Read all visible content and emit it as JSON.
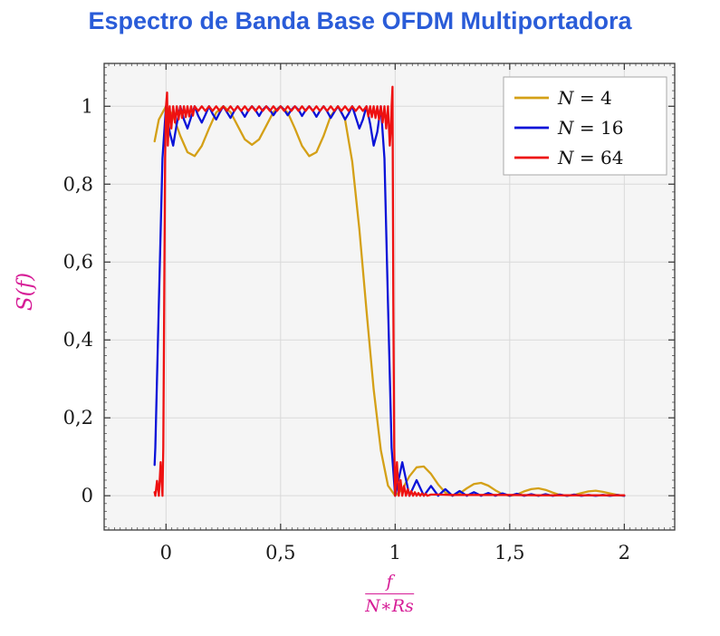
{
  "chart_data": {
    "type": "line",
    "title": "Espectro de Banda Base OFDM Multiportadora",
    "title_color": "#2a5cd8",
    "xlabel_numerator": "f",
    "xlabel_denominator": "N∗Rs",
    "ylabel": "S(f)",
    "label_color": "#d61c96",
    "plot_bg": "#f5f5f5",
    "grid_color": "#d9d9d9",
    "grid": true,
    "legend_position": "top-right",
    "xlim": [
      -0.27,
      2.22
    ],
    "ylim": [
      -0.088,
      1.11
    ],
    "x_minor_step": 0.025,
    "y_minor_step": 0.02,
    "x_ticks": [
      {
        "v": 0,
        "label": "0"
      },
      {
        "v": 0.5,
        "label": "0,5"
      },
      {
        "v": 1,
        "label": "1"
      },
      {
        "v": 1.5,
        "label": "1,5"
      },
      {
        "v": 2,
        "label": "2"
      }
    ],
    "y_ticks": [
      {
        "v": 0,
        "label": "0"
      },
      {
        "v": 0.2,
        "label": "0,2"
      },
      {
        "v": 0.4,
        "label": "0,4"
      },
      {
        "v": 0.6,
        "label": "0,6"
      },
      {
        "v": 0.8,
        "label": "0,8"
      },
      {
        "v": 1,
        "label": "1"
      }
    ],
    "series": [
      {
        "name": "N = 4",
        "color": "#d4a017",
        "points": [
          [
            -0.05,
            0.91
          ],
          [
            -0.03125,
            0.966
          ],
          [
            0,
            1
          ],
          [
            0.03125,
            0.975
          ],
          [
            0.0625,
            0.924
          ],
          [
            0.09375,
            0.882
          ],
          [
            0.125,
            0.872
          ],
          [
            0.15625,
            0.898
          ],
          [
            0.1875,
            0.943
          ],
          [
            0.21875,
            0.984
          ],
          [
            0.25,
            1
          ],
          [
            0.28125,
            0.985
          ],
          [
            0.3125,
            0.95
          ],
          [
            0.34375,
            0.915
          ],
          [
            0.375,
            0.901
          ],
          [
            0.40625,
            0.915
          ],
          [
            0.4375,
            0.95
          ],
          [
            0.46875,
            0.985
          ],
          [
            0.5,
            1
          ],
          [
            0.53125,
            0.984
          ],
          [
            0.5625,
            0.943
          ],
          [
            0.59375,
            0.898
          ],
          [
            0.625,
            0.872
          ],
          [
            0.65625,
            0.882
          ],
          [
            0.6875,
            0.924
          ],
          [
            0.71875,
            0.975
          ],
          [
            0.75,
            1
          ],
          [
            0.78125,
            0.966
          ],
          [
            0.8125,
            0.858
          ],
          [
            0.84375,
            0.684
          ],
          [
            0.875,
            0.475
          ],
          [
            0.90625,
            0.273
          ],
          [
            0.9375,
            0.117
          ],
          [
            0.96875,
            0.026
          ],
          [
            1,
            0
          ],
          [
            1.03125,
            0.017
          ],
          [
            1.0625,
            0.05
          ],
          [
            1.09375,
            0.073
          ],
          [
            1.125,
            0.075
          ],
          [
            1.15625,
            0.056
          ],
          [
            1.1875,
            0.029
          ],
          [
            1.21875,
            0.008
          ],
          [
            1.25,
            0
          ],
          [
            1.28125,
            0.006
          ],
          [
            1.3125,
            0.019
          ],
          [
            1.34375,
            0.03
          ],
          [
            1.375,
            0.033
          ],
          [
            1.40625,
            0.026
          ],
          [
            1.4375,
            0.014
          ],
          [
            1.46875,
            0.004
          ],
          [
            1.5,
            0
          ],
          [
            1.53125,
            0.003
          ],
          [
            1.5625,
            0.011
          ],
          [
            1.59375,
            0.017
          ],
          [
            1.625,
            0.019
          ],
          [
            1.65625,
            0.015
          ],
          [
            1.6875,
            0.008
          ],
          [
            1.71875,
            0.002
          ],
          [
            1.75,
            0
          ],
          [
            1.78125,
            0.002
          ],
          [
            1.8125,
            0.007
          ],
          [
            1.84375,
            0.011
          ],
          [
            1.875,
            0.013
          ],
          [
            1.90625,
            0.01
          ],
          [
            1.9375,
            0.006
          ],
          [
            1.96875,
            0.002
          ],
          [
            2,
            0
          ]
        ]
      },
      {
        "name": "N = 16",
        "color": "#0a12d8",
        "points": [
          [
            -0.05,
            0.079
          ],
          [
            -0.04688,
            0.123
          ],
          [
            -0.03125,
            0.494
          ],
          [
            -0.01563,
            0.866
          ],
          [
            0,
            1
          ],
          [
            0.01563,
            0.934
          ],
          [
            0.03125,
            0.899
          ],
          [
            0.04688,
            0.955
          ],
          [
            0.0625,
            1
          ],
          [
            0.07813,
            0.966
          ],
          [
            0.09375,
            0.943
          ],
          [
            0.10938,
            0.972
          ],
          [
            0.125,
            1
          ],
          [
            0.14063,
            0.975
          ],
          [
            0.15625,
            0.958
          ],
          [
            0.17188,
            0.978
          ],
          [
            0.1875,
            1
          ],
          [
            0.20313,
            0.981
          ],
          [
            0.21875,
            0.966
          ],
          [
            0.23438,
            0.984
          ],
          [
            0.25,
            1
          ],
          [
            0.26563,
            0.985
          ],
          [
            0.28125,
            0.97
          ],
          [
            0.29688,
            0.987
          ],
          [
            0.3125,
            1
          ],
          [
            0.32813,
            0.988
          ],
          [
            0.34375,
            0.973
          ],
          [
            0.35938,
            0.989
          ],
          [
            0.375,
            1
          ],
          [
            0.39063,
            0.99
          ],
          [
            0.40625,
            0.975
          ],
          [
            0.42188,
            0.991
          ],
          [
            0.4375,
            1
          ],
          [
            0.45313,
            0.991
          ],
          [
            0.46875,
            0.977
          ],
          [
            0.48438,
            0.991
          ],
          [
            0.5,
            1
          ],
          [
            0.51563,
            0.991
          ],
          [
            0.53125,
            0.977
          ],
          [
            0.54688,
            0.991
          ],
          [
            0.5625,
            1
          ],
          [
            0.57813,
            0.991
          ],
          [
            0.59375,
            0.975
          ],
          [
            0.60938,
            0.99
          ],
          [
            0.625,
            1
          ],
          [
            0.64063,
            0.989
          ],
          [
            0.65625,
            0.973
          ],
          [
            0.67188,
            0.988
          ],
          [
            0.6875,
            1
          ],
          [
            0.70313,
            0.987
          ],
          [
            0.71875,
            0.97
          ],
          [
            0.73438,
            0.985
          ],
          [
            0.75,
            1
          ],
          [
            0.76563,
            0.984
          ],
          [
            0.78125,
            0.966
          ],
          [
            0.79688,
            0.981
          ],
          [
            0.8125,
            1
          ],
          [
            0.82813,
            0.972
          ],
          [
            0.84375,
            0.943
          ],
          [
            0.85938,
            0.966
          ],
          [
            0.875,
            1
          ],
          [
            0.89063,
            0.955
          ],
          [
            0.90625,
            0.899
          ],
          [
            0.92188,
            0.934
          ],
          [
            0.9375,
            1
          ],
          [
            0.95313,
            0.866
          ],
          [
            0.96875,
            0.494
          ],
          [
            0.98438,
            0.123
          ],
          [
            1,
            0
          ],
          [
            1.03125,
            0.086
          ],
          [
            1.0625,
            0
          ],
          [
            1.09375,
            0.04
          ],
          [
            1.125,
            0
          ],
          [
            1.15625,
            0.025
          ],
          [
            1.1875,
            0
          ],
          [
            1.21875,
            0.017
          ],
          [
            1.25,
            0
          ],
          [
            1.28125,
            0.012
          ],
          [
            1.3125,
            0
          ],
          [
            1.34375,
            0.009
          ],
          [
            1.375,
            0
          ],
          [
            1.40625,
            0.007
          ],
          [
            1.4375,
            0
          ],
          [
            1.46875,
            0.006
          ],
          [
            1.5,
            0
          ],
          [
            1.53125,
            0.005
          ],
          [
            1.5625,
            0
          ],
          [
            1.59375,
            0.004
          ],
          [
            1.625,
            0
          ],
          [
            1.65625,
            0.004
          ],
          [
            1.6875,
            0
          ],
          [
            1.71875,
            0.003
          ],
          [
            1.75,
            0
          ],
          [
            1.78125,
            0.003
          ],
          [
            1.8125,
            0
          ],
          [
            1.84375,
            0.002
          ],
          [
            1.875,
            0
          ],
          [
            1.90625,
            0.002
          ],
          [
            1.9375,
            0
          ],
          [
            1.96875,
            0.002
          ],
          [
            2,
            0
          ]
        ]
      },
      {
        "name": "N = 64",
        "color": "#ee1111",
        "points": [
          [
            -0.05,
            0.009
          ],
          [
            -0.04688,
            0
          ],
          [
            -0.03906,
            0.038
          ],
          [
            -0.03125,
            0
          ],
          [
            -0.02344,
            0.086
          ],
          [
            -0.01563,
            0
          ],
          [
            -0.01172,
            0.123
          ],
          [
            -0.00781,
            0.494
          ],
          [
            -0.00391,
            0.866
          ],
          [
            0,
            1
          ],
          [
            0.00469,
            1.035
          ],
          [
            0.00781,
            0.899
          ],
          [
            0.01172,
            0.955
          ],
          [
            0.01563,
            1
          ],
          [
            0.02344,
            0.943
          ],
          [
            0.03125,
            1
          ],
          [
            0.03906,
            0.958
          ],
          [
            0.04688,
            1
          ],
          [
            0.05469,
            0.966
          ],
          [
            0.0625,
            1
          ],
          [
            0.07031,
            0.97
          ],
          [
            0.07813,
            1
          ],
          [
            0.08594,
            0.972
          ],
          [
            0.09375,
            1
          ],
          [
            0.10156,
            0.974
          ],
          [
            0.10938,
            1
          ],
          [
            0.11719,
            0.976
          ],
          [
            0.125,
            1
          ],
          [
            0.14063,
            0.988
          ],
          [
            0.15625,
            1
          ],
          [
            0.17188,
            0.988
          ],
          [
            0.1875,
            1
          ],
          [
            0.20313,
            0.988
          ],
          [
            0.21875,
            1
          ],
          [
            0.23438,
            0.988
          ],
          [
            0.25,
            1
          ],
          [
            0.26563,
            0.988
          ],
          [
            0.28125,
            1
          ],
          [
            0.29688,
            0.988
          ],
          [
            0.3125,
            1
          ],
          [
            0.32813,
            0.988
          ],
          [
            0.34375,
            1
          ],
          [
            0.35938,
            0.988
          ],
          [
            0.375,
            1
          ],
          [
            0.39063,
            0.988
          ],
          [
            0.40625,
            1
          ],
          [
            0.42188,
            0.988
          ],
          [
            0.4375,
            1
          ],
          [
            0.45313,
            0.988
          ],
          [
            0.46875,
            1
          ],
          [
            0.48438,
            0.988
          ],
          [
            0.5,
            1
          ],
          [
            0.51563,
            0.988
          ],
          [
            0.53125,
            1
          ],
          [
            0.54688,
            0.988
          ],
          [
            0.5625,
            1
          ],
          [
            0.57813,
            0.988
          ],
          [
            0.59375,
            1
          ],
          [
            0.60938,
            0.988
          ],
          [
            0.625,
            1
          ],
          [
            0.64063,
            0.988
          ],
          [
            0.65625,
            1
          ],
          [
            0.67188,
            0.988
          ],
          [
            0.6875,
            1
          ],
          [
            0.70313,
            0.988
          ],
          [
            0.71875,
            1
          ],
          [
            0.73438,
            0.988
          ],
          [
            0.75,
            1
          ],
          [
            0.76563,
            0.988
          ],
          [
            0.78125,
            1
          ],
          [
            0.79688,
            0.988
          ],
          [
            0.8125,
            1
          ],
          [
            0.82813,
            0.988
          ],
          [
            0.84375,
            1
          ],
          [
            0.85938,
            0.988
          ],
          [
            0.875,
            1
          ],
          [
            0.88281,
            0.974
          ],
          [
            0.89063,
            1
          ],
          [
            0.89844,
            0.972
          ],
          [
            0.90625,
            1
          ],
          [
            0.91406,
            0.97
          ],
          [
            0.92188,
            1
          ],
          [
            0.92969,
            0.966
          ],
          [
            0.9375,
            1
          ],
          [
            0.94531,
            0.958
          ],
          [
            0.95313,
            1
          ],
          [
            0.96094,
            0.943
          ],
          [
            0.96875,
            1
          ],
          [
            0.97656,
            0.899
          ],
          [
            0.98047,
            0.934
          ],
          [
            0.98438,
            1
          ],
          [
            0.98828,
            1.05
          ],
          [
            0.99219,
            0.494
          ],
          [
            0.99609,
            0.123
          ],
          [
            1,
            0
          ],
          [
            1.00781,
            0.086
          ],
          [
            1.01563,
            0
          ],
          [
            1.02344,
            0.04
          ],
          [
            1.03125,
            0
          ],
          [
            1.03906,
            0.025
          ],
          [
            1.04688,
            0
          ],
          [
            1.05469,
            0.017
          ],
          [
            1.0625,
            0
          ],
          [
            1.07031,
            0.012
          ],
          [
            1.07813,
            0
          ],
          [
            1.08594,
            0.009
          ],
          [
            1.09375,
            0
          ],
          [
            1.10156,
            0.007
          ],
          [
            1.10938,
            0
          ],
          [
            1.11719,
            0.006
          ],
          [
            1.125,
            0
          ],
          [
            1.13281,
            0.005
          ],
          [
            1.14063,
            0
          ],
          [
            1.15625,
            0.003
          ],
          [
            1.1875,
            0.003
          ],
          [
            1.25,
            0.002
          ],
          [
            1.3125,
            0.002
          ],
          [
            1.375,
            0.002
          ],
          [
            1.5,
            0.002
          ],
          [
            1.625,
            0.001
          ],
          [
            1.75,
            0.001
          ],
          [
            1.875,
            0.001
          ],
          [
            2,
            0.001
          ]
        ]
      }
    ]
  }
}
